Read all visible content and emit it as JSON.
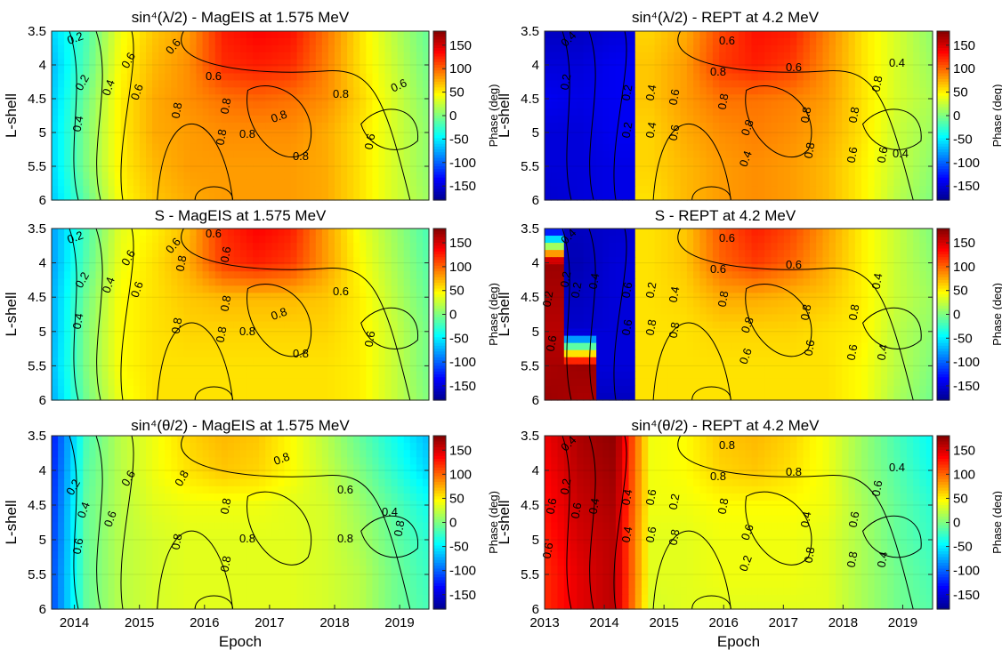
{
  "chart_data": [
    {
      "type": "heatmap",
      "id": "mag-lambda",
      "title": "sin⁴(λ/2) - MagEIS at 1.575 MeV",
      "xlabel": "",
      "ylabel": "L-shell",
      "xlim": [
        2013.65,
        2019.45
      ],
      "ylim": [
        3.5,
        6
      ],
      "x_ticks": [],
      "x_tick_labels": [],
      "y_ticks": [
        3.5,
        4,
        4.5,
        5,
        5.5,
        6
      ],
      "cbar_label": "Phase (deg)",
      "cbar_ticks": [
        150,
        100,
        50,
        0,
        -50,
        -100,
        -150
      ],
      "clim": [
        -180,
        180
      ],
      "phase_grid_deg": [
        [
          -60,
          -20,
          40,
          65,
          80,
          125,
          135,
          130,
          95,
          55,
          20,
          -10
        ],
        [
          -70,
          -15,
          45,
          70,
          85,
          120,
          125,
          120,
          90,
          55,
          25,
          -5
        ],
        [
          -65,
          -5,
          50,
          75,
          85,
          95,
          100,
          95,
          85,
          60,
          30,
          0
        ],
        [
          -60,
          0,
          50,
          75,
          80,
          85,
          85,
          85,
          75,
          55,
          30,
          5
        ],
        [
          -60,
          0,
          50,
          70,
          80,
          80,
          80,
          80,
          75,
          55,
          30,
          5
        ],
        [
          -65,
          -10,
          45,
          65,
          75,
          80,
          80,
          80,
          75,
          55,
          30,
          10
        ]
      ],
      "contour_labels": [
        "0.2",
        "0.2",
        "0.4",
        "0.4",
        "0.6",
        "0.6",
        "0.6",
        "0.6",
        "0.8",
        "0.8",
        "0.8",
        "0.8",
        "0.8",
        "0.8",
        "0.8",
        "0.6",
        "0.6"
      ]
    },
    {
      "type": "heatmap",
      "id": "rept-lambda",
      "title": "sin⁴(λ/2) - REPT at 4.2 MeV",
      "xlabel": "",
      "ylabel": "L-shell",
      "xlim": [
        2013,
        2019.5
      ],
      "ylim": [
        3.5,
        6
      ],
      "x_ticks": [],
      "x_tick_labels": [],
      "y_ticks": [
        3.5,
        4,
        4.5,
        5,
        5.5,
        6
      ],
      "cbar_label": "Phase (deg)",
      "cbar_ticks": [
        150,
        100,
        50,
        0,
        -50,
        -100,
        -150
      ],
      "clim": [
        -180,
        180
      ],
      "phase_grid_deg": [
        [
          -160,
          -160,
          -150,
          60,
          75,
          110,
          130,
          125,
          90,
          55,
          30,
          5
        ],
        [
          -150,
          -150,
          -140,
          65,
          80,
          115,
          125,
          115,
          85,
          55,
          30,
          10
        ],
        [
          -140,
          -145,
          -140,
          65,
          80,
          95,
          95,
          90,
          80,
          55,
          30,
          15
        ],
        [
          -150,
          -150,
          -140,
          60,
          75,
          85,
          90,
          85,
          75,
          55,
          25,
          10
        ],
        [
          -150,
          -150,
          -145,
          60,
          70,
          80,
          85,
          80,
          70,
          50,
          25,
          5
        ],
        [
          -155,
          -150,
          -145,
          55,
          70,
          80,
          85,
          80,
          70,
          50,
          20,
          0
        ]
      ],
      "contour_labels": [
        "0.4",
        "0.2",
        "0.6",
        "0.6",
        "0.8",
        "0.8",
        "0.8",
        "0.8",
        "0.4",
        "0.2",
        "0.4",
        "0.6",
        "0.2",
        "0.4",
        "0.6",
        "0.8",
        "0.8",
        "0.6",
        "0.8",
        "0.6",
        "0.4",
        "0.4"
      ]
    },
    {
      "type": "heatmap",
      "id": "mag-s",
      "title": "S - MagEIS at 1.575 MeV",
      "xlabel": "",
      "ylabel": "L-shell",
      "xlim": [
        2013.65,
        2019.45
      ],
      "ylim": [
        3.5,
        6
      ],
      "x_ticks": [],
      "x_tick_labels": [],
      "y_ticks": [
        3.5,
        4,
        4.5,
        5,
        5.5,
        6
      ],
      "cbar_label": "Phase (deg)",
      "cbar_ticks": [
        150,
        100,
        50,
        0,
        -50,
        -100,
        -150
      ],
      "clim": [
        -180,
        180
      ],
      "phase_grid_deg": [
        [
          -80,
          -20,
          35,
          50,
          70,
          120,
          135,
          125,
          80,
          40,
          10,
          -20
        ],
        [
          -80,
          -15,
          40,
          55,
          75,
          115,
          125,
          115,
          80,
          45,
          15,
          -15
        ],
        [
          -75,
          -5,
          45,
          55,
          65,
          70,
          70,
          70,
          65,
          50,
          20,
          -10
        ],
        [
          -75,
          0,
          45,
          55,
          60,
          60,
          60,
          60,
          60,
          50,
          25,
          -5
        ],
        [
          -70,
          0,
          45,
          55,
          55,
          55,
          55,
          55,
          55,
          50,
          25,
          -5
        ],
        [
          -75,
          -5,
          40,
          55,
          55,
          55,
          55,
          55,
          55,
          50,
          25,
          0
        ]
      ],
      "contour_labels": [
        "0.2",
        "0.2",
        "0.4",
        "0.4",
        "0.6",
        "0.6",
        "0.6",
        "0.6",
        "0.6",
        "0.8",
        "0.8",
        "0.8",
        "0.8",
        "0.8",
        "0.8",
        "0.8",
        "0.6",
        "0.6"
      ]
    },
    {
      "type": "heatmap",
      "id": "rept-s",
      "title": "S - REPT at 4.2 MeV",
      "xlabel": "",
      "ylabel": "L-shell",
      "xlim": [
        2013,
        2019.5
      ],
      "ylim": [
        3.5,
        6
      ],
      "x_ticks": [],
      "x_tick_labels": [],
      "y_ticks": [
        3.5,
        4,
        4.5,
        5,
        5.5,
        6
      ],
      "cbar_label": "Phase (deg)",
      "cbar_ticks": [
        150,
        100,
        50,
        0,
        -50,
        -100,
        -150
      ],
      "clim": [
        -180,
        180
      ],
      "phase_grid_deg": [
        [
          -160,
          -160,
          -155,
          55,
          65,
          105,
          125,
          110,
          80,
          50,
          25,
          0
        ],
        [
          170,
          -165,
          -150,
          55,
          65,
          100,
          115,
          100,
          75,
          50,
          25,
          5
        ],
        [
          165,
          -160,
          -150,
          55,
          60,
          75,
          75,
          70,
          65,
          50,
          25,
          10
        ],
        [
          160,
          -155,
          -150,
          55,
          55,
          60,
          60,
          60,
          55,
          50,
          20,
          5
        ],
        [
          165,
          170,
          -150,
          55,
          55,
          55,
          55,
          55,
          55,
          45,
          20,
          0
        ],
        [
          170,
          165,
          -160,
          55,
          55,
          55,
          55,
          55,
          55,
          45,
          15,
          -5
        ]
      ],
      "contour_labels": [
        "0.4",
        "0.2",
        "0.6",
        "0.6",
        "0.6",
        "0.8",
        "0.8",
        "0.8",
        "0.6",
        "0.2",
        "0.6",
        "0.2",
        "0.4",
        "0.6",
        "0.2",
        "0.4",
        "0.6",
        "0.8",
        "0.8",
        "0.6",
        "0.8",
        "0.6",
        "0.4",
        "0.4"
      ]
    },
    {
      "type": "heatmap",
      "id": "mag-theta",
      "title": "sin⁴(θ/2) - MagEIS at 1.575 MeV",
      "xlabel": "Epoch",
      "ylabel": "L-shell",
      "xlim": [
        2013.65,
        2019.45
      ],
      "ylim": [
        3.5,
        6
      ],
      "x_ticks": [
        2014,
        2015,
        2016,
        2017,
        2018,
        2019
      ],
      "x_tick_labels": [
        "2014",
        "2015",
        "2016",
        "2017",
        "2018",
        "2019"
      ],
      "y_ticks": [
        3.5,
        4,
        4.5,
        5,
        5.5,
        6
      ],
      "cbar_label": "Phase (deg)",
      "cbar_ticks": [
        150,
        100,
        50,
        0,
        -50,
        -100,
        -150
      ],
      "clim": [
        -180,
        180
      ],
      "phase_grid_deg": [
        [
          -130,
          -20,
          20,
          40,
          60,
          70,
          65,
          45,
          20,
          -10,
          -40,
          -70
        ],
        [
          -125,
          -15,
          20,
          40,
          55,
          65,
          60,
          45,
          25,
          0,
          -30,
          -60
        ],
        [
          -120,
          -10,
          20,
          35,
          40,
          40,
          40,
          35,
          30,
          10,
          -15,
          -40
        ],
        [
          -115,
          -10,
          20,
          30,
          35,
          35,
          35,
          35,
          30,
          15,
          -10,
          -30
        ],
        [
          -110,
          -10,
          20,
          30,
          35,
          35,
          35,
          35,
          30,
          20,
          -5,
          -25
        ],
        [
          -110,
          -10,
          20,
          30,
          35,
          35,
          35,
          35,
          30,
          20,
          -5,
          -20
        ]
      ],
      "contour_labels": [
        "0.2",
        "0.4",
        "0.6",
        "0.6",
        "0.8",
        "0.8",
        "0.8",
        "0.6",
        "0.8",
        "0.8",
        "0.8",
        "0.8",
        "0.8",
        "0.4",
        "0.6"
      ]
    },
    {
      "type": "heatmap",
      "id": "rept-theta",
      "title": "sin⁴(θ/2) - REPT at 4.2 MeV",
      "xlabel": "Epoch",
      "ylabel": "L-shell",
      "xlim": [
        2013,
        2019.5
      ],
      "ylim": [
        3.5,
        6
      ],
      "x_ticks": [
        2013,
        2014,
        2015,
        2016,
        2017,
        2018,
        2019
      ],
      "x_tick_labels": [
        "2013",
        "2014",
        "2015",
        "2016",
        "2017",
        "2018",
        "2019"
      ],
      "y_ticks": [
        3.5,
        4,
        4.5,
        5,
        5.5,
        6
      ],
      "cbar_label": "Phase (deg)",
      "cbar_ticks": [
        150,
        100,
        50,
        0,
        -50,
        -100,
        -150
      ],
      "clim": [
        -180,
        180
      ],
      "phase_grid_deg": [
        [
          140,
          165,
          175,
          40,
          45,
          65,
          70,
          60,
          40,
          10,
          -20,
          -45
        ],
        [
          135,
          160,
          170,
          40,
          45,
          60,
          65,
          55,
          40,
          10,
          -15,
          -40
        ],
        [
          130,
          155,
          165,
          40,
          40,
          45,
          45,
          45,
          40,
          15,
          -10,
          -30
        ],
        [
          125,
          150,
          160,
          35,
          35,
          40,
          40,
          40,
          35,
          15,
          -10,
          -25
        ],
        [
          120,
          145,
          160,
          35,
          35,
          40,
          40,
          40,
          35,
          15,
          -5,
          -20
        ],
        [
          120,
          145,
          160,
          30,
          35,
          35,
          35,
          35,
          35,
          15,
          -5,
          -15
        ]
      ],
      "contour_labels": [
        "0.4",
        "0.2",
        "0.6",
        "0.4",
        "0.6",
        "0.6",
        "0.8",
        "0.8",
        "0.8",
        "0.8",
        "0.6",
        "0.4",
        "0.2",
        "0.4",
        "0.6",
        "0.2",
        "0.4",
        "0.6",
        "0.8",
        "0.8",
        "0.6",
        "0.8",
        "0.6",
        "0.4",
        "0.4"
      ]
    }
  ],
  "colormap": [
    "#00008f",
    "#0000ff",
    "#0080ff",
    "#00ffff",
    "#80ff80",
    "#ffff00",
    "#ff8000",
    "#ff0000",
    "#800000"
  ]
}
